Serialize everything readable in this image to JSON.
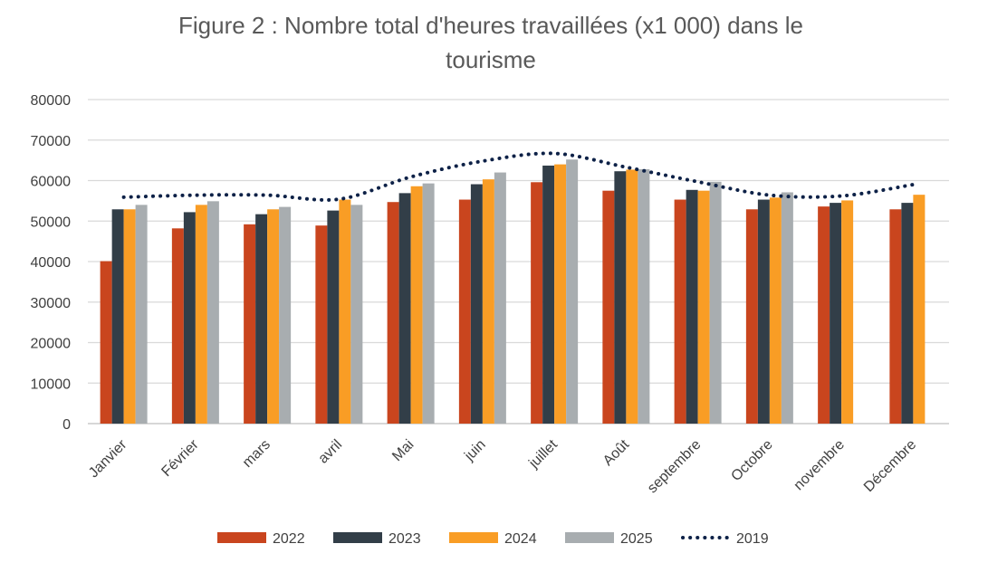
{
  "chart_data": {
    "type": "bar",
    "title_lines": [
      "Figure 2 : Nombre total d'heures travaillées (x1 000) dans le",
      "tourisme"
    ],
    "xlabel": "",
    "ylabel": "",
    "ylim": [
      0,
      80000
    ],
    "yticks": [
      "0",
      "10000",
      "20000",
      "30000",
      "40000",
      "50000",
      "60000",
      "70000",
      "80000"
    ],
    "grid": true,
    "legend_position": "bottom",
    "categories": [
      "Janvier",
      "Février",
      "mars",
      "avril",
      "Mai",
      "juin",
      "juillet",
      "Août",
      "septembre",
      "Octobre",
      "novembre",
      "Décembre"
    ],
    "series": [
      {
        "name": "2022",
        "kind": "bar",
        "color": "#c9451e",
        "values": [
          40100,
          48200,
          49200,
          48900,
          54700,
          55300,
          59600,
          57500,
          55300,
          52900,
          53600,
          52900
        ]
      },
      {
        "name": "2023",
        "kind": "bar",
        "color": "#323e48",
        "values": [
          52900,
          52200,
          51700,
          52600,
          56900,
          59100,
          63700,
          62300,
          57700,
          55300,
          54500,
          54500
        ]
      },
      {
        "name": "2024",
        "kind": "bar",
        "color": "#f99d25",
        "values": [
          52900,
          54000,
          52900,
          55300,
          58600,
          60300,
          64000,
          62700,
          57500,
          55800,
          55100,
          56500
        ]
      },
      {
        "name": "2025",
        "kind": "bar",
        "color": "#a8adb0",
        "values": [
          54000,
          54900,
          53500,
          54000,
          59300,
          62000,
          65200,
          62800,
          59700,
          57100,
          null,
          null
        ]
      },
      {
        "name": "2019",
        "kind": "line-dotted",
        "color": "#0d2147",
        "values": [
          55900,
          56400,
          56400,
          55400,
          60900,
          64800,
          66700,
          63300,
          59700,
          56400,
          56200,
          59000
        ]
      }
    ]
  }
}
